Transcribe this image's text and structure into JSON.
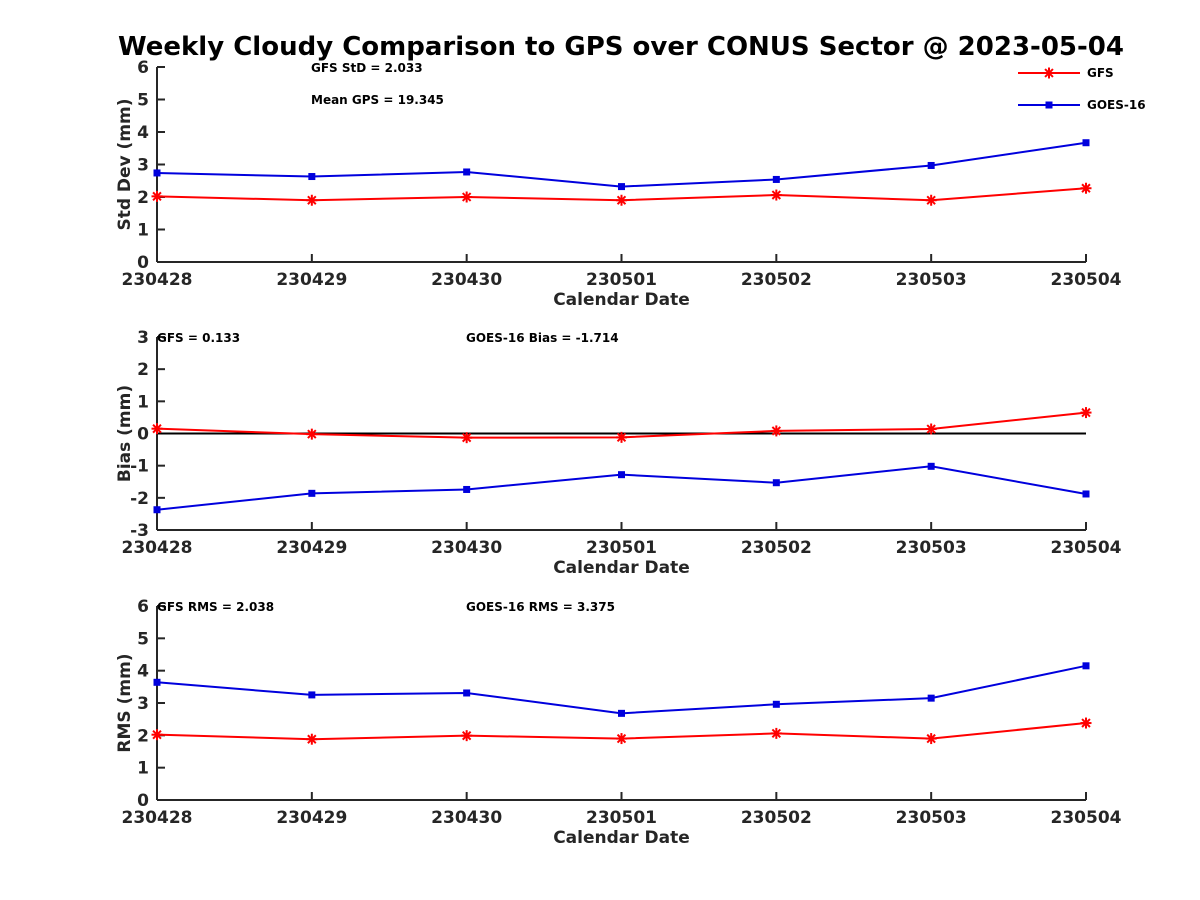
{
  "title": "Weekly Cloudy Comparison to GPS over CONUS Sector @ 2023-05-04",
  "colors": {
    "gfs": "#ff0000",
    "goes": "#0000dd",
    "axis": "#262626",
    "zero_line": "#000000"
  },
  "legend": {
    "placement": "top-right of first panel",
    "items": [
      {
        "label": "GFS",
        "marker": "asterisk",
        "color": "#ff0000"
      },
      {
        "label": "GOES-16",
        "marker": "square",
        "color": "#0000dd"
      }
    ]
  },
  "chart_data": [
    {
      "type": "line",
      "panel": "std",
      "title": "",
      "xlabel": "Calendar Date",
      "ylabel": "Std Dev (mm)",
      "categories": [
        "230428",
        "230429",
        "230430",
        "230501",
        "230502",
        "230503",
        "230504"
      ],
      "ylim": [
        0,
        6
      ],
      "yticks": [
        "0",
        "1",
        "2",
        "3",
        "4",
        "5",
        "6"
      ],
      "grid": false,
      "series": [
        {
          "name": "GFS",
          "values": [
            2.02,
            1.9,
            2.0,
            1.9,
            2.06,
            1.9,
            2.27
          ]
        },
        {
          "name": "GOES-16",
          "values": [
            2.74,
            2.63,
            2.77,
            2.32,
            2.54,
            2.97,
            3.67
          ]
        }
      ],
      "annotations": [
        "GFS StD = 2.033",
        "Mean GPS = 19.345"
      ]
    },
    {
      "type": "line",
      "panel": "bias",
      "title": "",
      "xlabel": "Calendar Date",
      "ylabel": "Bias (mm)",
      "categories": [
        "230428",
        "230429",
        "230430",
        "230501",
        "230502",
        "230503",
        "230504"
      ],
      "ylim": [
        -3,
        3
      ],
      "yticks": [
        "-3",
        "-2",
        "-1",
        "0",
        "1",
        "2",
        "3"
      ],
      "grid": false,
      "zero_line": true,
      "series": [
        {
          "name": "GFS",
          "values": [
            0.15,
            -0.02,
            -0.13,
            -0.12,
            0.08,
            0.14,
            0.65
          ]
        },
        {
          "name": "GOES-16",
          "values": [
            -2.37,
            -1.86,
            -1.74,
            -1.28,
            -1.53,
            -1.02,
            -1.88
          ]
        }
      ],
      "annotations": [
        "GFS = 0.133",
        "GOES-16 Bias  = -1.714"
      ]
    },
    {
      "type": "line",
      "panel": "rms",
      "title": "",
      "xlabel": "Calendar Date",
      "ylabel": "RMS (mm)",
      "categories": [
        "230428",
        "230429",
        "230430",
        "230501",
        "230502",
        "230503",
        "230504"
      ],
      "ylim": [
        0,
        6
      ],
      "yticks": [
        "0",
        "1",
        "2",
        "3",
        "4",
        "5",
        "6"
      ],
      "grid": false,
      "series": [
        {
          "name": "GFS",
          "values": [
            2.02,
            1.88,
            1.99,
            1.9,
            2.06,
            1.9,
            2.38
          ]
        },
        {
          "name": "GOES-16",
          "values": [
            3.64,
            3.25,
            3.31,
            2.68,
            2.96,
            3.15,
            4.15
          ]
        }
      ],
      "annotations": [
        "GFS RMS = 2.038",
        "GOES-16 RMS = 3.375"
      ]
    }
  ]
}
